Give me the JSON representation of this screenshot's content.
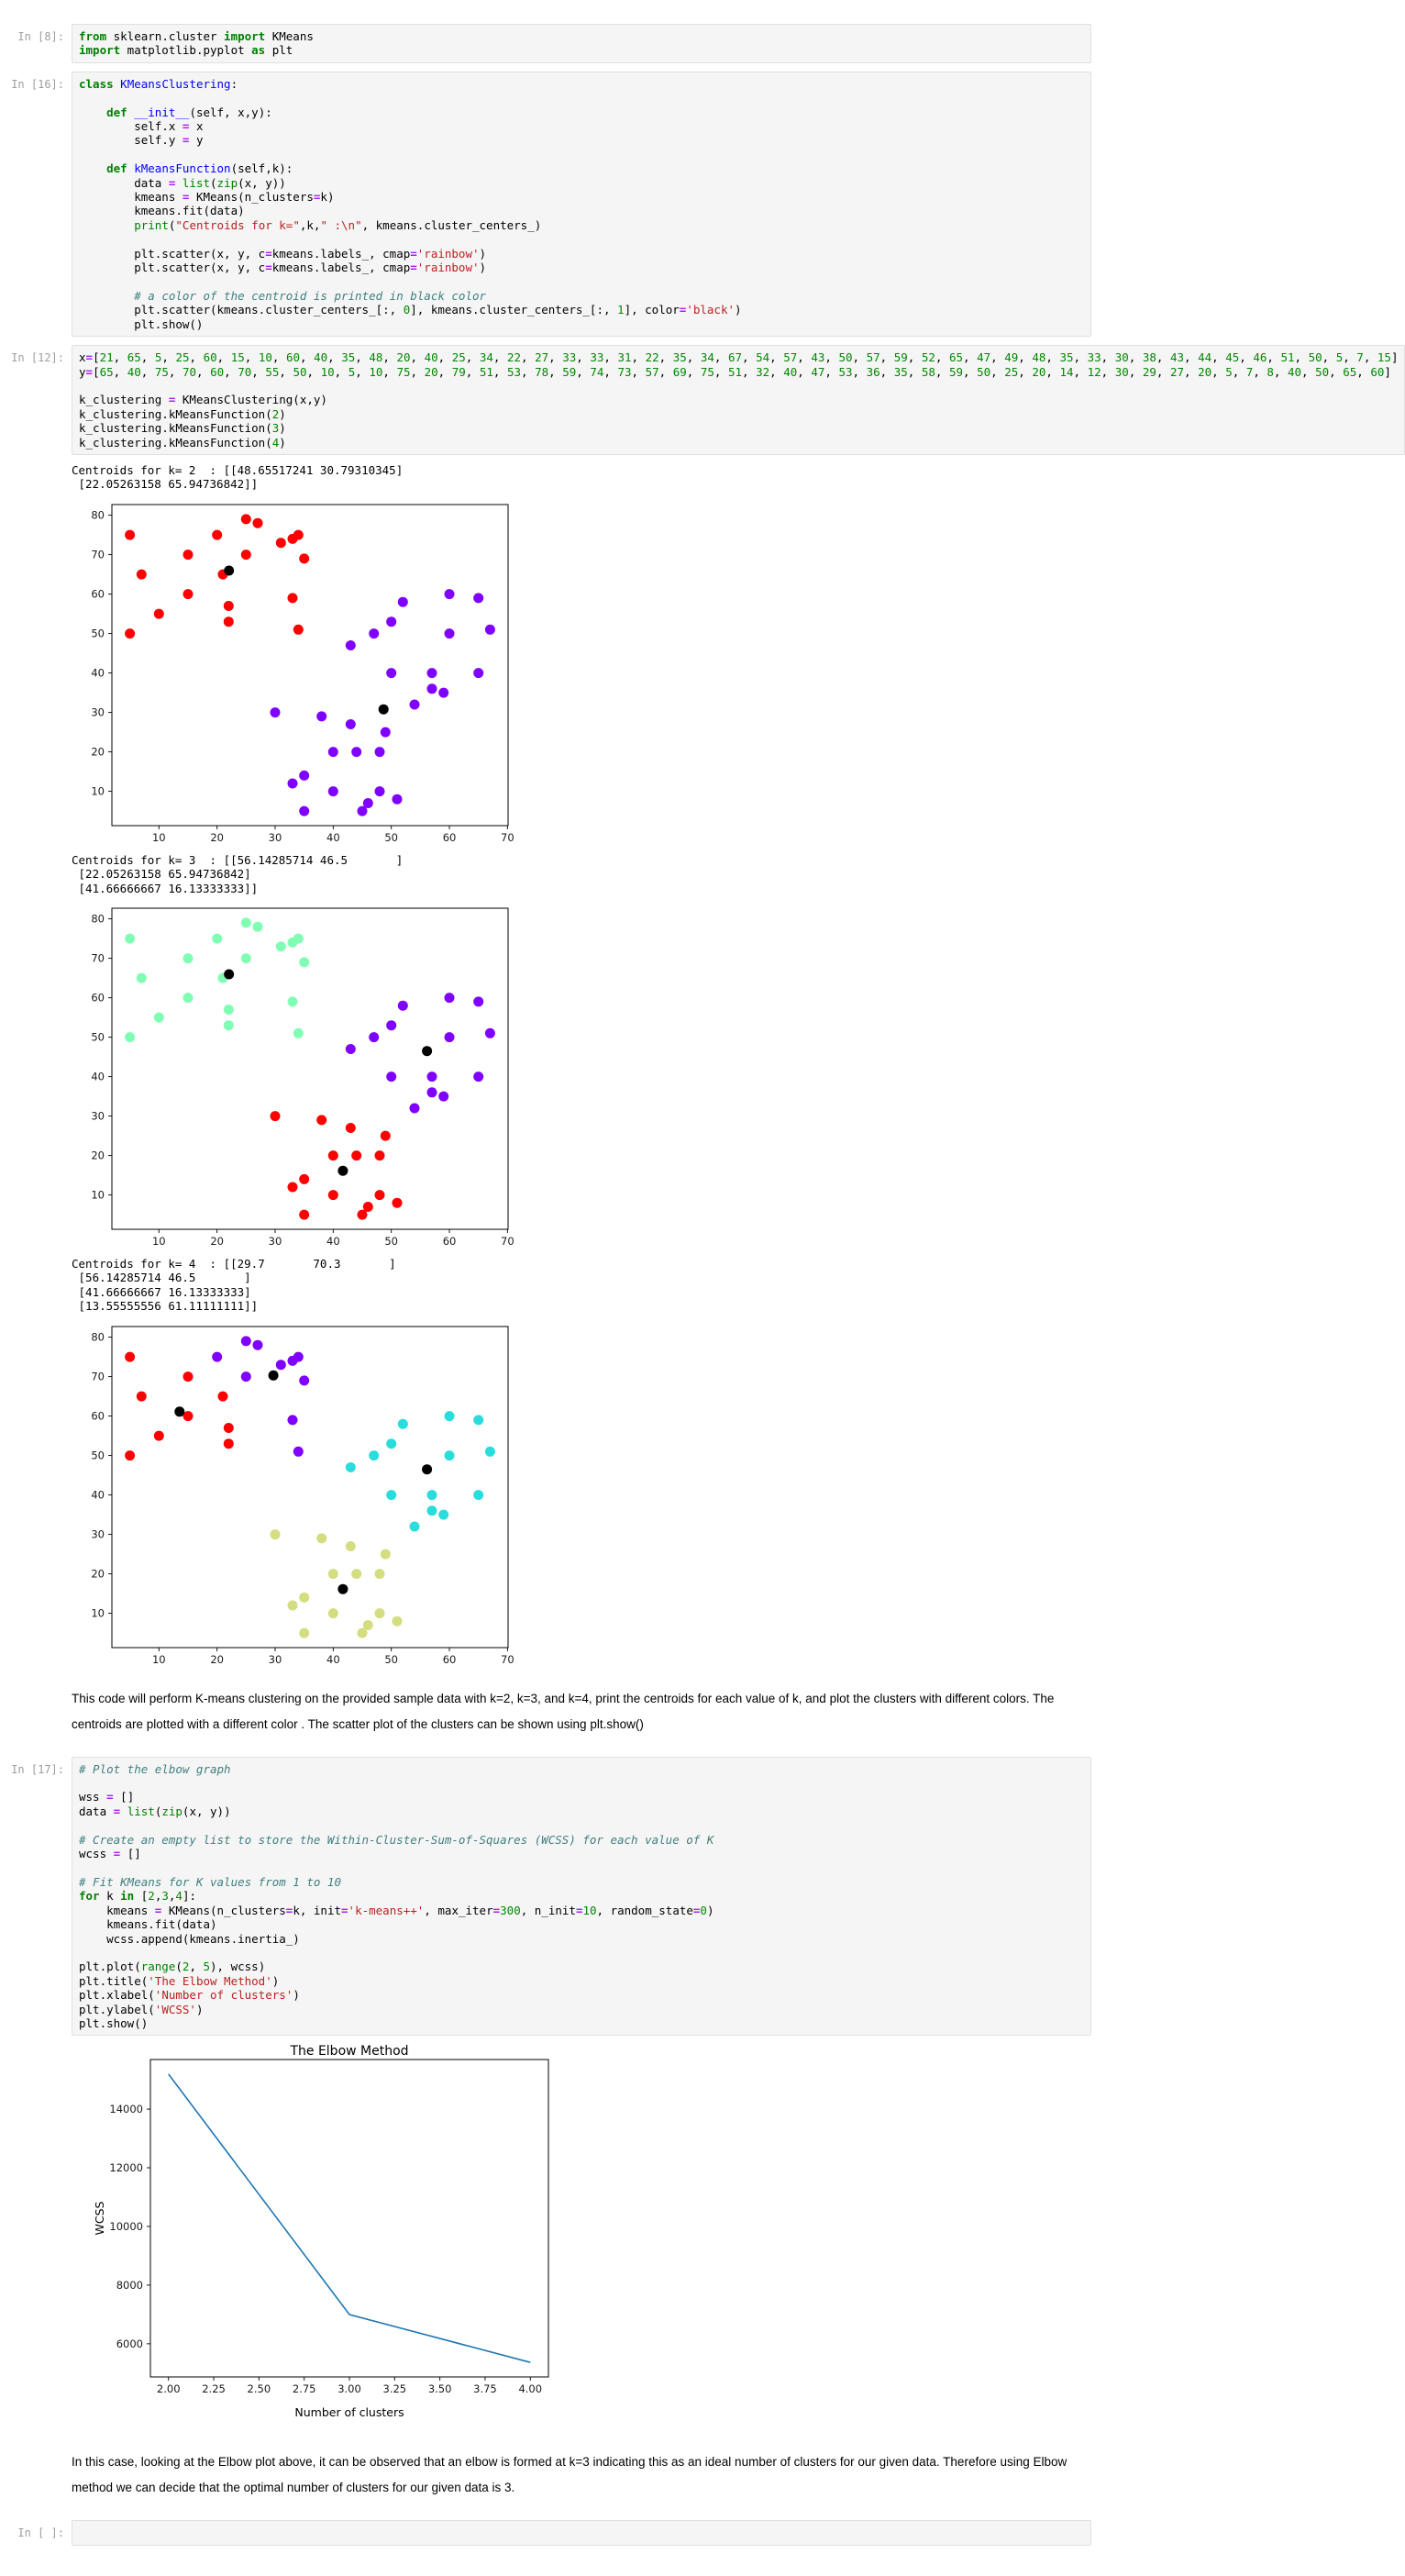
{
  "cells": {
    "c1": {
      "prompt": "In [8]:",
      "code": [
        "from sklearn.cluster import KMeans",
        "import matplotlib.pyplot as plt"
      ]
    },
    "c2": {
      "prompt": "In [16]:",
      "code": [
        "class KMeansClustering:",
        "",
        "    def __init__(self, x,y):",
        "        self.x = x",
        "        self.y = y",
        "",
        "    def kMeansFunction(self,k):",
        "        data = list(zip(x, y))",
        "        kmeans = KMeans(n_clusters=k)",
        "        kmeans.fit(data)",
        "        print(\"Centroids for k=\",k,\" :\\n\", kmeans.cluster_centers_)",
        "",
        "        plt.scatter(x, y, c=kmeans.labels_, cmap='rainbow')",
        "        plt.scatter(x, y, c=kmeans.labels_, cmap='rainbow')",
        "",
        "        # a color of the centroid is printed in black color",
        "        plt.scatter(kmeans.cluster_centers_[:, 0], kmeans.cluster_centers_[:, 1], color='black')",
        "        plt.show()"
      ]
    },
    "c3": {
      "prompt": "In [12]:",
      "code": [
        "x=[21, 65, 5, 25, 60, 15, 10, 60, 40, 35, 48, 20, 40, 25, 34, 22, 27, 33, 33, 31, 22, 35, 34, 67, 54, 57, 43, 50, 57, 59, 52, 65, 47, 49, 48, 35, 33, 30, 38, 43, 44, 45, 46, 51, 50, 5, 7, 15]",
        "y=[65, 40, 75, 70, 60, 70, 55, 50, 10, 5, 10, 75, 20, 79, 51, 53, 78, 59, 74, 73, 57, 69, 75, 51, 32, 40, 47, 53, 36, 35, 58, 59, 50, 25, 20, 14, 12, 30, 29, 27, 20, 5, 7, 8, 40, 50, 65, 60]",
        "",
        "k_clustering = KMeansClustering(x,y)",
        "k_clustering.kMeansFunction(2)",
        "k_clustering.kMeansFunction(3)",
        "k_clustering.kMeansFunction(4)"
      ],
      "out_k2": [
        "Centroids for k= 2  : [[48.65517241 30.79310345]",
        " [22.05263158 65.94736842]]"
      ],
      "out_k3": [
        "Centroids for k= 3  : [[56.14285714 46.5       ]",
        " [22.05263158 65.94736842]",
        " [41.66666667 16.13333333]]"
      ],
      "out_k4": [
        "Centroids for k= 4  : [[29.7       70.3       ]",
        " [56.14285714 46.5       ]",
        " [41.66666667 16.13333333]",
        " [13.55555556 61.11111111]]"
      ]
    },
    "md1": {
      "text": "This code will perform K-means clustering on the provided sample data with k=2, k=3, and k=4, print the centroids for each value of k, and plot the clusters with different colors. The centroids are plotted with a different color . The scatter plot of the clusters can be shown using plt.show()"
    },
    "c4": {
      "prompt": "In [17]:",
      "code": [
        "# Plot the elbow graph",
        "",
        "wss = []",
        "data = list(zip(x, y))",
        "",
        "# Create an empty list to store the Within-Cluster-Sum-of-Squares (WCSS) for each value of K",
        "wcss = []",
        "",
        "# Fit KMeans for K values from 1 to 10",
        "for k in [2,3,4]:",
        "    kmeans = KMeans(n_clusters=k, init='k-means++', max_iter=300, n_init=10, random_state=0)",
        "    kmeans.fit(data)",
        "    wcss.append(kmeans.inertia_)",
        "",
        "plt.plot(range(2, 5), wcss)",
        "plt.title('The Elbow Method')",
        "plt.xlabel('Number of clusters')",
        "plt.ylabel('WCSS')",
        "plt.show()"
      ]
    },
    "md2": {
      "text": "In this case, looking at the Elbow plot above, it can be observed that an elbow is formed at k=3 indicating this as an ideal number of clusters for our given data. Therefore using Elbow method we can decide that the optimal number of clusters for our given data is 3."
    },
    "c5": {
      "prompt": "In [ ]:",
      "code": [
        ""
      ]
    }
  },
  "ui": {
    "cell_background": "#f5f5f5",
    "cell_border": "#e0e0e0",
    "prompt_color": "#9e9e9e",
    "syntax": {
      "keyword": "#008000",
      "builtin": "#008000",
      "string": "#ba2121",
      "comment": "#408080",
      "number": "#008800",
      "operator": "#aa22ff",
      "function_name": "#0000ff"
    }
  },
  "chart_data": {
    "points": [
      [
        21,
        65
      ],
      [
        65,
        40
      ],
      [
        5,
        75
      ],
      [
        25,
        70
      ],
      [
        60,
        60
      ],
      [
        15,
        70
      ],
      [
        10,
        55
      ],
      [
        60,
        50
      ],
      [
        40,
        10
      ],
      [
        35,
        5
      ],
      [
        48,
        10
      ],
      [
        20,
        75
      ],
      [
        40,
        20
      ],
      [
        25,
        79
      ],
      [
        34,
        51
      ],
      [
        22,
        53
      ],
      [
        27,
        78
      ],
      [
        33,
        59
      ],
      [
        33,
        74
      ],
      [
        31,
        73
      ],
      [
        22,
        57
      ],
      [
        35,
        69
      ],
      [
        34,
        75
      ],
      [
        67,
        51
      ],
      [
        54,
        32
      ],
      [
        57,
        40
      ],
      [
        43,
        47
      ],
      [
        50,
        53
      ],
      [
        57,
        36
      ],
      [
        59,
        35
      ],
      [
        52,
        58
      ],
      [
        65,
        59
      ],
      [
        47,
        50
      ],
      [
        49,
        25
      ],
      [
        48,
        20
      ],
      [
        35,
        14
      ],
      [
        33,
        12
      ],
      [
        30,
        30
      ],
      [
        38,
        29
      ],
      [
        43,
        27
      ],
      [
        44,
        20
      ],
      [
        45,
        5
      ],
      [
        46,
        7
      ],
      [
        51,
        8
      ],
      [
        50,
        40
      ],
      [
        5,
        50
      ],
      [
        7,
        65
      ],
      [
        15,
        60
      ]
    ],
    "k2": {
      "type": "scatter",
      "palette": [
        "#8000ff",
        "#ff0000"
      ],
      "labels": [
        1,
        0,
        1,
        1,
        0,
        1,
        1,
        0,
        0,
        0,
        0,
        1,
        0,
        1,
        1,
        1,
        1,
        1,
        1,
        1,
        1,
        1,
        1,
        0,
        0,
        0,
        0,
        0,
        0,
        0,
        0,
        0,
        0,
        0,
        0,
        0,
        0,
        0,
        0,
        0,
        0,
        0,
        0,
        0,
        0,
        1,
        1,
        1
      ],
      "centroids": [
        [
          48.65517241,
          30.79310345
        ],
        [
          22.05263158,
          65.94736842
        ]
      ],
      "centroid_color": "#000000",
      "xlim": [
        1.9,
        70.1
      ],
      "ylim": [
        1.3,
        82.7
      ],
      "xticks": [
        10,
        20,
        30,
        40,
        50,
        60,
        70
      ],
      "yticks": [
        10,
        20,
        30,
        40,
        50,
        60,
        70,
        80
      ]
    },
    "k3": {
      "type": "scatter",
      "palette": [
        "#8000ff",
        "#80ffb4",
        "#ff0000"
      ],
      "labels": [
        1,
        0,
        1,
        1,
        0,
        1,
        1,
        0,
        2,
        2,
        2,
        1,
        2,
        1,
        1,
        1,
        1,
        1,
        1,
        1,
        1,
        1,
        1,
        0,
        0,
        0,
        0,
        0,
        0,
        0,
        0,
        0,
        0,
        2,
        2,
        2,
        2,
        2,
        2,
        2,
        2,
        2,
        2,
        2,
        0,
        1,
        1,
        1
      ],
      "centroids": [
        [
          56.14285714,
          46.5
        ],
        [
          22.05263158,
          65.94736842
        ],
        [
          41.66666667,
          16.13333333
        ]
      ],
      "centroid_color": "#000000",
      "xlim": [
        1.9,
        70.1
      ],
      "ylim": [
        1.3,
        82.7
      ],
      "xticks": [
        10,
        20,
        30,
        40,
        50,
        60,
        70
      ],
      "yticks": [
        10,
        20,
        30,
        40,
        50,
        60,
        70,
        80
      ]
    },
    "k4": {
      "type": "scatter",
      "palette": [
        "#8000ff",
        "#2adddd",
        "#d4dd80",
        "#ff0000"
      ],
      "labels": [
        3,
        1,
        3,
        0,
        1,
        3,
        3,
        1,
        2,
        2,
        2,
        0,
        2,
        0,
        0,
        3,
        0,
        0,
        0,
        0,
        3,
        0,
        0,
        1,
        1,
        1,
        1,
        1,
        1,
        1,
        1,
        1,
        1,
        2,
        2,
        2,
        2,
        2,
        2,
        2,
        2,
        2,
        2,
        2,
        1,
        3,
        3,
        3
      ],
      "centroids": [
        [
          29.7,
          70.3
        ],
        [
          56.14285714,
          46.5
        ],
        [
          41.66666667,
          16.13333333
        ],
        [
          13.55555556,
          61.11111111
        ]
      ],
      "centroid_color": "#000000",
      "xlim": [
        1.9,
        70.1
      ],
      "ylim": [
        1.3,
        82.7
      ],
      "xticks": [
        10,
        20,
        30,
        40,
        50,
        60,
        70
      ],
      "yticks": [
        10,
        20,
        30,
        40,
        50,
        60,
        70,
        80
      ]
    },
    "elbow": {
      "type": "line",
      "title": "The Elbow Method",
      "xlabel": "Number of clusters",
      "ylabel": "WCSS",
      "x": [
        2,
        3,
        4
      ],
      "y": [
        15193,
        6998,
        5364
      ],
      "xticks": [
        2,
        2.25,
        2.5,
        2.75,
        3,
        3.25,
        3.5,
        3.75,
        4
      ],
      "xtick_labels": [
        "2.00",
        "2.25",
        "2.50",
        "2.75",
        "3.00",
        "3.25",
        "3.50",
        "3.75",
        "4.00"
      ],
      "yticks": [
        6000,
        8000,
        10000,
        12000,
        14000
      ],
      "xlim": [
        1.9,
        4.1
      ],
      "ylim": [
        4870,
        15690
      ],
      "line_color": "#1f77b4"
    }
  }
}
